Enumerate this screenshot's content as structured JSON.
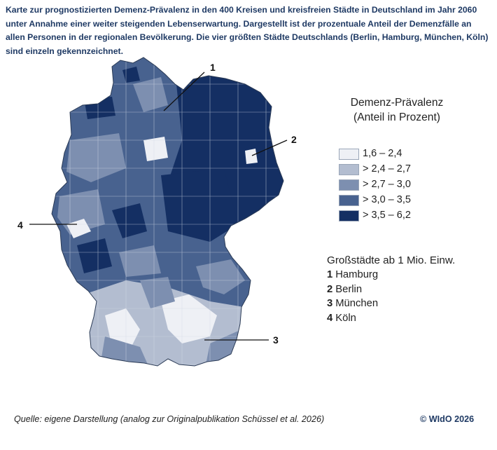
{
  "description": "Karte zur prognostizierten Demenz-Prävalenz in den 400 Kreisen und kreisfreien Städte in Deutschland im Jahr 2060 unter Annahme einer weiter steigenden Lebenserwartung. Dargestellt ist der prozentuale Anteil der Demenzfälle an allen Personen in der regionalen Bevölkerung. Die vier größten Städte Deutschlands (Berlin, Hamburg, München, Köln) sind einzeln gekennzeichnet.",
  "legend": {
    "title_line1": "Demenz-Prävalenz",
    "title_line2": "(Anteil in Prozent)",
    "classes": [
      {
        "label": "1,6 – 2,4",
        "color": "#eef0f5"
      },
      {
        "label": "> 2,4 – 2,7",
        "color": "#b3bdd0"
      },
      {
        "label": "> 2,7 – 3,0",
        "color": "#7d8fb0"
      },
      {
        "label": "> 3,0 – 3,5",
        "color": "#48628f"
      },
      {
        "label": "> 3,5 – 6,2",
        "color": "#142f63"
      }
    ]
  },
  "cities": {
    "title": "Großstädte ab 1 Mio. Einw.",
    "items": [
      {
        "num": "1",
        "name": "Hamburg"
      },
      {
        "num": "2",
        "name": "Berlin"
      },
      {
        "num": "3",
        "name": "München"
      },
      {
        "num": "4",
        "name": "Köln"
      }
    ]
  },
  "callouts": [
    "1",
    "2",
    "3",
    "4"
  ],
  "source": "Quelle: eigene Darstellung (analog zur Originalpublikation Schüssel et al. 2026)",
  "copyright": "© WIdO 2026"
}
